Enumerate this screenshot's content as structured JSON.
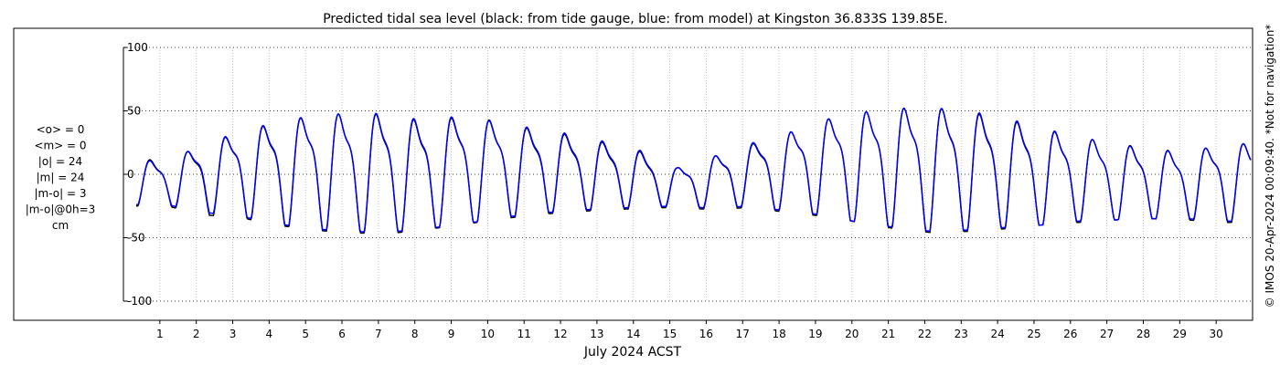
{
  "chart_data": {
    "type": "line",
    "title": "Predicted tidal sea level (black: from tide gauge, blue: from model) at Kingston 36.833S 139.85E.",
    "xlabel": "July 2024 ACST",
    "ylabel": "",
    "xlim": [
      0,
      31
    ],
    "ylim": [
      -100,
      100
    ],
    "x_ticks": [
      "1",
      "2",
      "3",
      "4",
      "5",
      "6",
      "7",
      "8",
      "9",
      "10",
      "11",
      "12",
      "13",
      "14",
      "15",
      "16",
      "17",
      "18",
      "19",
      "20",
      "21",
      "22",
      "23",
      "24",
      "25",
      "26",
      "27",
      "28",
      "29",
      "30"
    ],
    "y_ticks": [
      "100",
      "50",
      "0",
      "-50",
      "-100"
    ],
    "grid": true,
    "series": [
      {
        "color": "#000000",
        "peaks": [
          15,
          28,
          40,
          48,
          55,
          57,
          56,
          50,
          53,
          50,
          42,
          37,
          30,
          22,
          8,
          18,
          28,
          38,
          50,
          57,
          61,
          62,
          58,
          52,
          43,
          36,
          30,
          26,
          22,
          30
        ],
        "troughs": [
          -25,
          -32,
          -34,
          -40,
          -44,
          -46,
          -47,
          -44,
          -40,
          -36,
          -32,
          -30,
          -28,
          -27,
          -26,
          -28,
          -26,
          -30,
          -33,
          -38,
          -43,
          -46,
          -45,
          -43,
          -40,
          -38,
          -36,
          -35,
          -36,
          -38
        ]
      },
      {
        "color": "#0000ff",
        "peaks": [
          14,
          29,
          40,
          49,
          55,
          57,
          57,
          51,
          54,
          49,
          43,
          38,
          31,
          23,
          8,
          18,
          29,
          38,
          50,
          57,
          61,
          62,
          59,
          53,
          44,
          36,
          30,
          25,
          22,
          30
        ],
        "troughs": [
          -24,
          -30,
          -33,
          -39,
          -43,
          -45,
          -46,
          -43,
          -40,
          -35,
          -31,
          -29,
          -27,
          -26,
          -25,
          -27,
          -25,
          -29,
          -32,
          -38,
          -42,
          -45,
          -44,
          -42,
          -40,
          -37,
          -36,
          -35,
          -35,
          -37
        ]
      }
    ],
    "stats": [
      "<o> = 0",
      "<m> = 0",
      "|o| = 24",
      "|m| = 24",
      "|m-o| = 3",
      "|m-o|@0h=3",
      "cm"
    ],
    "side_note": "© IMOS 20-Apr-2024 00:09:40. *Not for navigation*"
  }
}
